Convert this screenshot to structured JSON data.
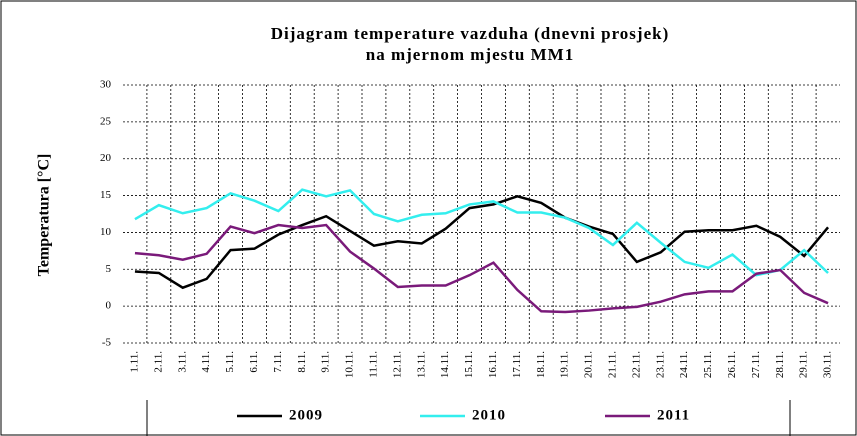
{
  "chart_data": {
    "type": "line",
    "title": "Dijagram temperature vazduha (dnevni prosjek)",
    "subtitle": "na mjernom mjestu MM1",
    "y_label": "Temperatura [°C]",
    "categories": [
      "1.11.",
      "2.11.",
      "3.11.",
      "4.11.",
      "5.11.",
      "6.11.",
      "7.11.",
      "8.11.",
      "9.11.",
      "10.11.",
      "11.11.",
      "12.11.",
      "13.11.",
      "14.11.",
      "15.11.",
      "16.11.",
      "17.11.",
      "18.11.",
      "19.11.",
      "20.11.",
      "21.11.",
      "22.11.",
      "23.11.",
      "24.11.",
      "25.11.",
      "26.11.",
      "27.11.",
      "28.11.",
      "29.11.",
      "30.11."
    ],
    "series": [
      {
        "name": "2009",
        "color": "#000000",
        "values": [
          4.7,
          4.5,
          2.5,
          3.7,
          7.6,
          7.8,
          9.7,
          11,
          12.2,
          10.2,
          8.2,
          8.8,
          8.5,
          10.5,
          13.3,
          13.8,
          14.9,
          14,
          12,
          10.8,
          9.8,
          6,
          7.3,
          10.1,
          10.3,
          10.3,
          10.9,
          9.4,
          6.8,
          10.7
        ]
      },
      {
        "name": "2010",
        "color": "#33eeee",
        "values": [
          11.8,
          13.7,
          12.6,
          13.3,
          15.3,
          14.3,
          12.9,
          15.8,
          14.9,
          15.7,
          12.5,
          11.5,
          12.4,
          12.6,
          13.8,
          14.2,
          12.7,
          12.7,
          12,
          10.6,
          8.3,
          11.3,
          8.6,
          6,
          5.2,
          7,
          4.2,
          4.9,
          7.6,
          4.5
        ]
      },
      {
        "name": "2011",
        "color": "#7a1a7a",
        "values": [
          7.2,
          6.9,
          6.3,
          7.1,
          10.8,
          9.9,
          11,
          10.6,
          11,
          7.4,
          5.1,
          2.6,
          2.8,
          2.8,
          4.2,
          5.9,
          2.2,
          -0.7,
          -0.8,
          -0.6,
          -0.3,
          -0.1,
          0.6,
          1.6,
          2,
          2,
          4.4,
          4.9,
          1.8,
          0.4
        ]
      }
    ],
    "ylim": [
      -5,
      30
    ],
    "yticks": [
      -5,
      0,
      5,
      10,
      15,
      20,
      25,
      30
    ],
    "grid": true
  }
}
